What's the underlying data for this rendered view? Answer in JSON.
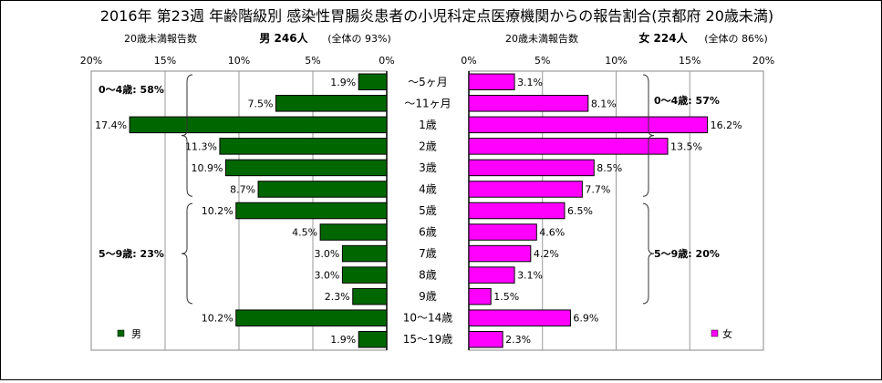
{
  "title": "2016年 第23週 年齢階級別 感染性胃腸炎患者の小児科定点医療機関からの報告割合(京都府 20歳未満)",
  "chart_data": [
    {
      "type": "bar",
      "orientation": "horizontal",
      "direction": "reversed",
      "panel": "male",
      "subtitle_left": "20歳未満報告数",
      "subtitle_main": "男  246人",
      "subtitle_paren": "(全体の  93%)",
      "xlim": [
        0,
        20
      ],
      "tick_labels": [
        "20%",
        "15%",
        "10%",
        "5%",
        "0%"
      ],
      "categories": [
        "～5ヶ月",
        "～11ヶ月",
        "1歳",
        "2歳",
        "3歳",
        "4歳",
        "5歳",
        "6歳",
        "7歳",
        "8歳",
        "9歳",
        "10～14歳",
        "15～19歳"
      ],
      "series": [
        {
          "name": "男",
          "color": "#006600",
          "values": [
            1.9,
            7.5,
            17.4,
            11.3,
            10.9,
            8.7,
            10.2,
            4.5,
            3.0,
            3.0,
            2.3,
            10.2,
            1.9
          ],
          "labels": [
            "1.9%",
            "7.5%",
            "17.4%",
            "11.3%",
            "10.9%",
            "8.7%",
            "10.2%",
            "4.5%",
            "3.0%",
            "3.0%",
            "2.3%",
            "10.2%",
            "1.9%"
          ]
        }
      ],
      "annotations": [
        {
          "text": "0～4歳: 58%",
          "range": [
            0,
            5
          ]
        },
        {
          "text": "5～9歳: 23%",
          "range": [
            6,
            10
          ]
        }
      ],
      "legend": {
        "label": "男",
        "placement": "bottom-left"
      },
      "grid": true
    },
    {
      "type": "bar",
      "orientation": "horizontal",
      "panel": "female",
      "subtitle_left": "20歳未満報告数",
      "subtitle_main": "女  224人",
      "subtitle_paren": "(全体の  86%)",
      "xlim": [
        0,
        20
      ],
      "tick_labels": [
        "0%",
        "5%",
        "10%",
        "15%",
        "20%"
      ],
      "categories": [
        "～5ヶ月",
        "～11ヶ月",
        "1歳",
        "2歳",
        "3歳",
        "4歳",
        "5歳",
        "6歳",
        "7歳",
        "8歳",
        "9歳",
        "10～14歳",
        "15～19歳"
      ],
      "series": [
        {
          "name": "女",
          "color": "#ff00ff",
          "values": [
            3.1,
            8.1,
            16.2,
            13.5,
            8.5,
            7.7,
            6.5,
            4.6,
            4.2,
            3.1,
            1.5,
            6.9,
            2.3
          ],
          "labels": [
            "3.1%",
            "8.1%",
            "16.2%",
            "13.5%",
            "8.5%",
            "7.7%",
            "6.5%",
            "4.6%",
            "4.2%",
            "3.1%",
            "1.5%",
            "6.9%",
            "2.3%"
          ]
        }
      ],
      "annotations": [
        {
          "text": "0～4歳: 57%",
          "range": [
            0,
            5
          ]
        },
        {
          "text": "5～9歳: 20%",
          "range": [
            6,
            10
          ]
        }
      ],
      "legend": {
        "label": "女",
        "placement": "bottom-right"
      },
      "grid": true
    }
  ]
}
